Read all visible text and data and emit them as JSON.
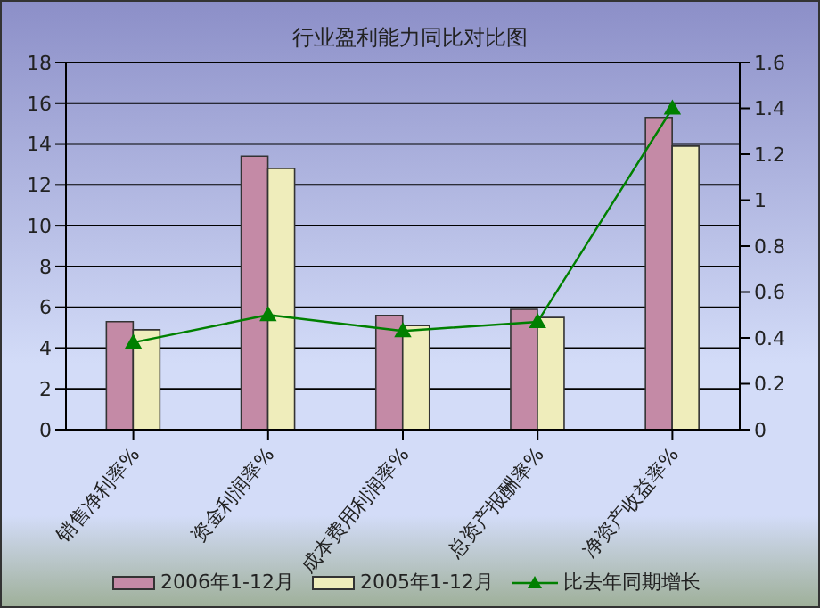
{
  "chart_data": {
    "type": "bar",
    "title": "行业盈利能力同比对比图",
    "categories": [
      "销售净利率%",
      "资金利润率%",
      "成本费用利润率%",
      "总资产报酬率%",
      "净资产收益率%"
    ],
    "series": [
      {
        "name": "2006年1-12月",
        "color": "#c48aa6",
        "values": [
          5.3,
          13.4,
          5.6,
          5.9,
          15.3
        ]
      },
      {
        "name": "2005年1-12月",
        "color": "#efedbb",
        "values": [
          4.9,
          12.8,
          5.1,
          5.5,
          13.9
        ]
      },
      {
        "name": "比去年同期增长",
        "type": "line",
        "axis": "y2",
        "color": "#008000",
        "marker": "triangle",
        "values": [
          0.38,
          0.5,
          0.43,
          0.47,
          1.4
        ]
      }
    ],
    "ylim": [
      0,
      18
    ],
    "yticks": [
      0,
      2,
      4,
      6,
      8,
      10,
      12,
      14,
      16,
      18
    ],
    "y2lim": [
      0,
      1.6
    ],
    "y2ticks": [
      0,
      {
        "value": 0.2,
        "label": "0.2"
      },
      {
        "value": 0.4,
        "label": "0.4"
      },
      {
        "value": 0.6,
        "label": "0.6"
      },
      {
        "value": 0.8,
        "label": "0.8"
      },
      1,
      {
        "value": 1.2,
        "label": "1.2"
      },
      {
        "value": 1.4,
        "label": "1.4"
      },
      {
        "value": 1.6,
        "label": "1.6"
      }
    ],
    "grid": "y",
    "legend": "bottom"
  }
}
